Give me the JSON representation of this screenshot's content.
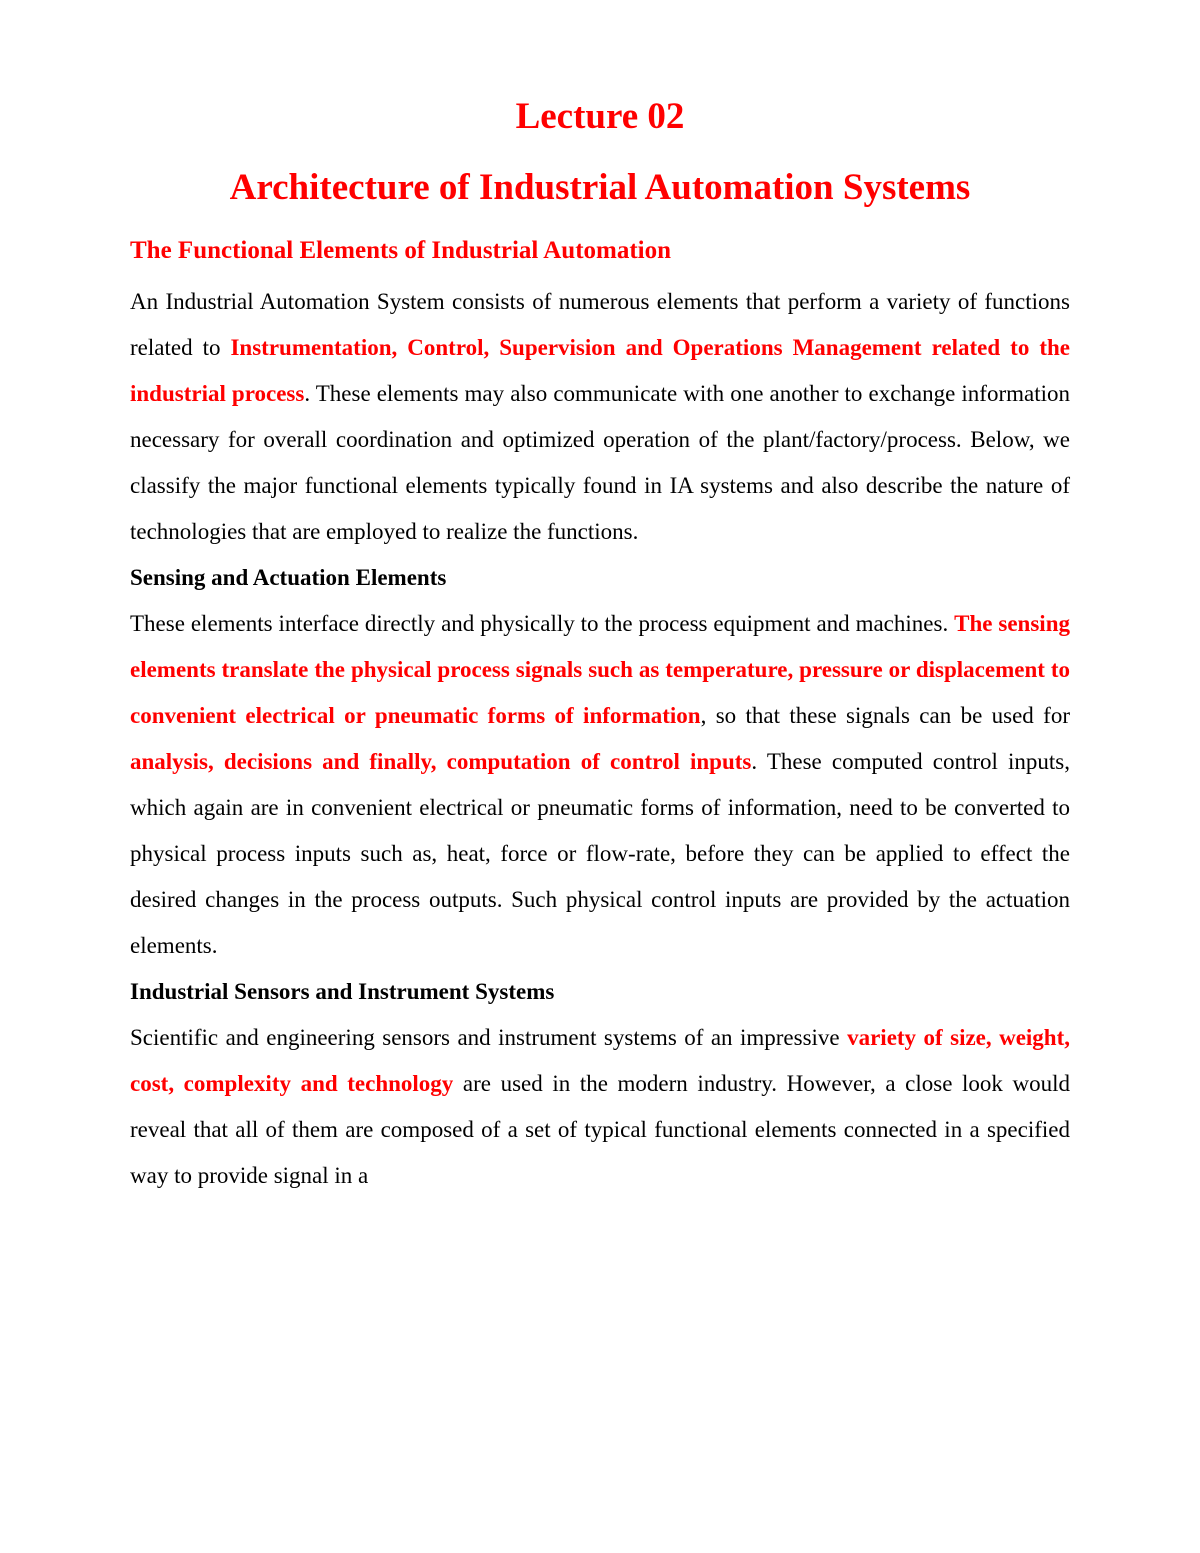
{
  "title_line1": "Lecture 02",
  "title_line2": "Architecture of Industrial Automation Systems",
  "section1_heading": "The Functional Elements of Industrial Automation",
  "p1_a": "An Industrial Automation System consists of numerous elements that perform a variety of functions related to ",
  "p1_b": "Instrumentation, Control, Supervision and Operations Management related to the industrial process",
  "p1_c": ". These elements may also communicate with one another to exchange information necessary for overall coordination and optimized operation of the plant/factory/process. Below, we classify the major functional elements typically found in IA systems and also describe the nature of technologies that are employed to realize the functions.",
  "sub1_heading": "Sensing and Actuation Elements",
  "p2_a": "These elements interface directly and physically to the process equipment and machines. ",
  "p2_b": "The sensing elements translate the physical process signals such as temperature, pressure or displacement to convenient electrical or pneumatic forms of information",
  "p2_c": ", so that these signals can be used for ",
  "p2_d": "analysis, decisions and finally, computation of control inputs",
  "p2_e": ". These computed control inputs, which again are in convenient electrical or pneumatic forms of information, need to be converted to physical process inputs such as, heat, force or flow-rate, before they can be applied to effect the desired changes in the process outputs. Such physical control inputs are provided by the actuation elements.",
  "sub2_heading": "Industrial Sensors and Instrument Systems",
  "p3_a": "Scientific and engineering sensors and instrument systems of an impressive ",
  "p3_b": "variety of size, weight, cost, complexity and technology",
  "p3_c": " are used in the modern industry. However, a close look would reveal that all of them are composed of a set of typical functional elements connected in a specified way to provide signal in a",
  "colors": {
    "heading_red": "#ff0000",
    "body_text": "#000000",
    "background": "#ffffff"
  },
  "typography": {
    "title_fontsize": 37,
    "section_fontsize": 25,
    "body_fontsize": 23,
    "line_height": 2.0,
    "font_family": "Times New Roman"
  }
}
